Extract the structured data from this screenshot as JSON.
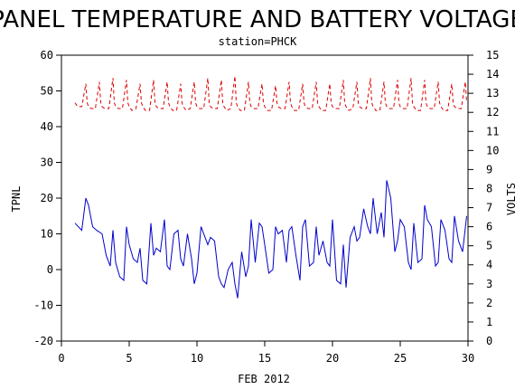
{
  "chart_data": {
    "type": "line",
    "title": "PANEL TEMPERATURE AND BATTERY VOLTAGE",
    "subtitle": "station=PHCK",
    "xlabel": "FEB 2012",
    "ylabel_left": "TPNL",
    "ylabel_right": "VOLTS",
    "xlim": [
      0,
      30
    ],
    "ylim_left": [
      -20,
      60
    ],
    "ylim_right": [
      0,
      15
    ],
    "x_ticks": [
      "0",
      "5",
      "10",
      "15",
      "20",
      "25",
      "30"
    ],
    "y_left_ticks": [
      "-20",
      "-10",
      "0",
      "10",
      "20",
      "30",
      "40",
      "50",
      "60"
    ],
    "y_right_ticks": [
      "0",
      "1",
      "2",
      "3",
      "4",
      "5",
      "6",
      "7",
      "8",
      "9",
      "10",
      "11",
      "12",
      "13",
      "14",
      "15"
    ],
    "series": [
      {
        "name": "TPNL",
        "color": "#0000cc",
        "axis": "left",
        "x": [
          1.0,
          1.5,
          1.8,
          2.0,
          2.3,
          2.6,
          3.0,
          3.3,
          3.6,
          3.8,
          4.0,
          4.3,
          4.6,
          4.8,
          5.0,
          5.3,
          5.6,
          5.8,
          6.0,
          6.3,
          6.6,
          6.8,
          7.0,
          7.3,
          7.6,
          7.8,
          8.0,
          8.3,
          8.6,
          8.8,
          9.0,
          9.3,
          9.6,
          9.8,
          10.0,
          10.3,
          10.6,
          10.8,
          11.0,
          11.3,
          11.6,
          11.8,
          12.0,
          12.3,
          12.6,
          12.8,
          13.0,
          13.3,
          13.6,
          13.8,
          14.0,
          14.3,
          14.6,
          14.8,
          15.0,
          15.3,
          15.6,
          15.8,
          16.0,
          16.3,
          16.6,
          16.8,
          17.0,
          17.3,
          17.6,
          17.8,
          18.0,
          18.3,
          18.6,
          18.8,
          19.0,
          19.3,
          19.6,
          19.8,
          20.0,
          20.3,
          20.6,
          20.8,
          21.0,
          21.3,
          21.6,
          21.8,
          22.0,
          22.3,
          22.6,
          22.8,
          23.0,
          23.3,
          23.6,
          23.8,
          24.0,
          24.3,
          24.6,
          24.8,
          25.0,
          25.3,
          25.6,
          25.8,
          26.0,
          26.3,
          26.6,
          26.8,
          27.0,
          27.3,
          27.6,
          27.8,
          28.0,
          28.3,
          28.6,
          28.8,
          29.0,
          29.3,
          29.6,
          29.9
        ],
        "values": [
          13,
          11,
          20,
          18,
          12,
          11,
          10,
          4,
          1,
          11,
          2,
          -2,
          -3,
          12,
          7,
          3,
          2,
          6,
          -3,
          -4,
          13,
          4,
          6,
          5,
          14,
          1,
          0,
          10,
          11,
          3,
          1,
          10,
          3,
          -4,
          -1,
          12,
          9,
          7,
          9,
          8,
          -2,
          -4,
          -5,
          0,
          2,
          -4,
          -8,
          5,
          -2,
          1,
          14,
          2,
          13,
          12,
          7,
          -1,
          0,
          12,
          10,
          11,
          2,
          11,
          12,
          4,
          -3,
          12,
          14,
          1,
          2,
          12,
          4,
          8,
          2,
          1,
          14,
          -3,
          -4,
          7,
          -5,
          9,
          12,
          8,
          9,
          17,
          12,
          10,
          20,
          10,
          16,
          9,
          25,
          20,
          5,
          8,
          14,
          12,
          2,
          0,
          13,
          2,
          3,
          18,
          14,
          12,
          1,
          2,
          14,
          11,
          3,
          2,
          15,
          8,
          5,
          15
        ]
      },
      {
        "name": "VOLTS",
        "color": "#dd0000",
        "axis": "right",
        "dash": "4,3",
        "x": [
          1.0,
          1.2,
          1.5,
          1.8,
          1.9,
          2.0,
          2.2,
          2.5,
          2.8,
          2.9,
          3.0,
          3.2,
          3.5,
          3.8,
          3.9,
          4.0,
          4.2,
          4.5,
          4.8,
          4.9,
          5.0,
          5.2,
          5.5,
          5.8,
          5.9,
          6.0,
          6.2,
          6.5,
          6.8,
          6.9,
          7.0,
          7.2,
          7.5,
          7.8,
          7.9,
          8.0,
          8.2,
          8.5,
          8.8,
          8.9,
          9.0,
          9.2,
          9.5,
          9.8,
          9.9,
          10.0,
          10.2,
          10.5,
          10.8,
          10.9,
          11.0,
          11.2,
          11.5,
          11.8,
          11.9,
          12.0,
          12.2,
          12.5,
          12.8,
          12.9,
          13.0,
          13.2,
          13.5,
          13.8,
          13.9,
          14.0,
          14.2,
          14.5,
          14.8,
          14.9,
          15.0,
          15.2,
          15.5,
          15.8,
          15.9,
          16.0,
          16.2,
          16.5,
          16.8,
          16.9,
          17.0,
          17.2,
          17.5,
          17.8,
          17.9,
          18.0,
          18.2,
          18.5,
          18.8,
          18.9,
          19.0,
          19.2,
          19.5,
          19.8,
          19.9,
          20.0,
          20.2,
          20.5,
          20.8,
          20.9,
          21.0,
          21.2,
          21.5,
          21.8,
          21.9,
          22.0,
          22.2,
          22.5,
          22.8,
          22.9,
          23.0,
          23.2,
          23.5,
          23.8,
          23.9,
          24.0,
          24.2,
          24.5,
          24.8,
          24.9,
          25.0,
          25.2,
          25.5,
          25.8,
          25.9,
          26.0,
          26.2,
          26.5,
          26.8,
          26.9,
          27.0,
          27.2,
          27.5,
          27.8,
          27.9,
          28.0,
          28.2,
          28.5,
          28.8,
          28.9,
          29.0,
          29.2,
          29.5,
          29.8,
          29.9
        ],
        "values": [
          12.5,
          12.3,
          12.3,
          13.5,
          12.5,
          12.3,
          12.2,
          12.2,
          13.6,
          12.5,
          12.3,
          12.2,
          12.2,
          13.8,
          12.5,
          12.3,
          12.2,
          12.2,
          13.7,
          12.5,
          12.3,
          12.1,
          12.2,
          13.5,
          12.5,
          12.3,
          12.1,
          12.1,
          13.7,
          12.5,
          12.3,
          12.2,
          12.2,
          13.6,
          12.5,
          12.3,
          12.1,
          12.1,
          13.5,
          12.5,
          12.3,
          12.1,
          12.2,
          13.6,
          12.5,
          12.3,
          12.2,
          12.2,
          13.8,
          12.5,
          12.3,
          12.2,
          12.2,
          13.7,
          12.5,
          12.3,
          12.1,
          12.2,
          13.9,
          12.5,
          12.3,
          12.1,
          12.1,
          13.6,
          12.5,
          12.3,
          12.2,
          12.2,
          13.5,
          12.5,
          12.3,
          12.1,
          12.1,
          13.4,
          12.5,
          12.3,
          12.2,
          12.2,
          13.6,
          12.5,
          12.3,
          12.1,
          12.1,
          13.5,
          12.5,
          12.3,
          12.2,
          12.2,
          13.6,
          12.5,
          12.3,
          12.1,
          12.1,
          13.5,
          12.5,
          12.3,
          12.2,
          12.2,
          13.7,
          12.5,
          12.3,
          12.1,
          12.2,
          13.6,
          12.5,
          12.3,
          12.2,
          12.2,
          13.8,
          12.5,
          12.3,
          12.1,
          12.1,
          13.6,
          12.5,
          12.3,
          12.2,
          12.2,
          13.7,
          12.5,
          12.3,
          12.2,
          12.2,
          13.8,
          12.5,
          12.3,
          12.1,
          12.1,
          13.7,
          12.5,
          12.3,
          12.2,
          12.2,
          13.6,
          12.5,
          12.3,
          12.1,
          12.1,
          13.5,
          12.5,
          12.3,
          12.2,
          12.2,
          13.6,
          12.5
        ]
      }
    ]
  }
}
